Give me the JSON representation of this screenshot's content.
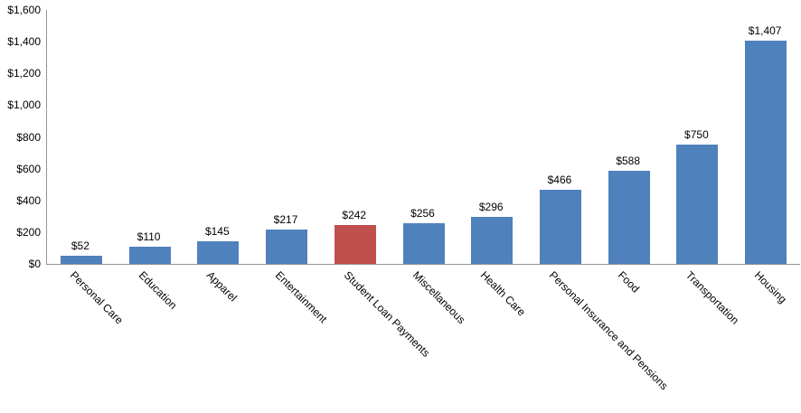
{
  "chart_data": {
    "type": "bar",
    "title": "",
    "xlabel": "",
    "ylabel": "",
    "categories": [
      "Personal Care",
      "Education",
      "Apparel",
      "Entertainment",
      "Student Loan Payments",
      "Miscellaneous",
      "Health Care",
      "Personal Insurance and Pensions",
      "Food",
      "Transportation",
      "Housing"
    ],
    "values": [
      52,
      110,
      145,
      217,
      242,
      256,
      296,
      466,
      588,
      750,
      1407
    ],
    "value_labels": [
      "$52",
      "$110",
      "$145",
      "$217",
      "$242",
      "$256",
      "$296",
      "$466",
      "$588",
      "$750",
      "$1,407"
    ],
    "highlight_index": 4,
    "y_ticks": [
      "$0",
      "$200",
      "$400",
      "$600",
      "$800",
      "$1,000",
      "$1,200",
      "$1,400",
      "$1,600"
    ],
    "y_tick_values": [
      0,
      200,
      400,
      600,
      800,
      1000,
      1200,
      1400,
      1600
    ],
    "ylim": [
      0,
      1600
    ],
    "grid": false,
    "legend": "none",
    "x_label_rotation_deg": 45,
    "colors": {
      "bar_default": "#4F81BD",
      "bar_highlight": "#C0504D",
      "axis_line": "#949494",
      "text": "#000000"
    }
  }
}
